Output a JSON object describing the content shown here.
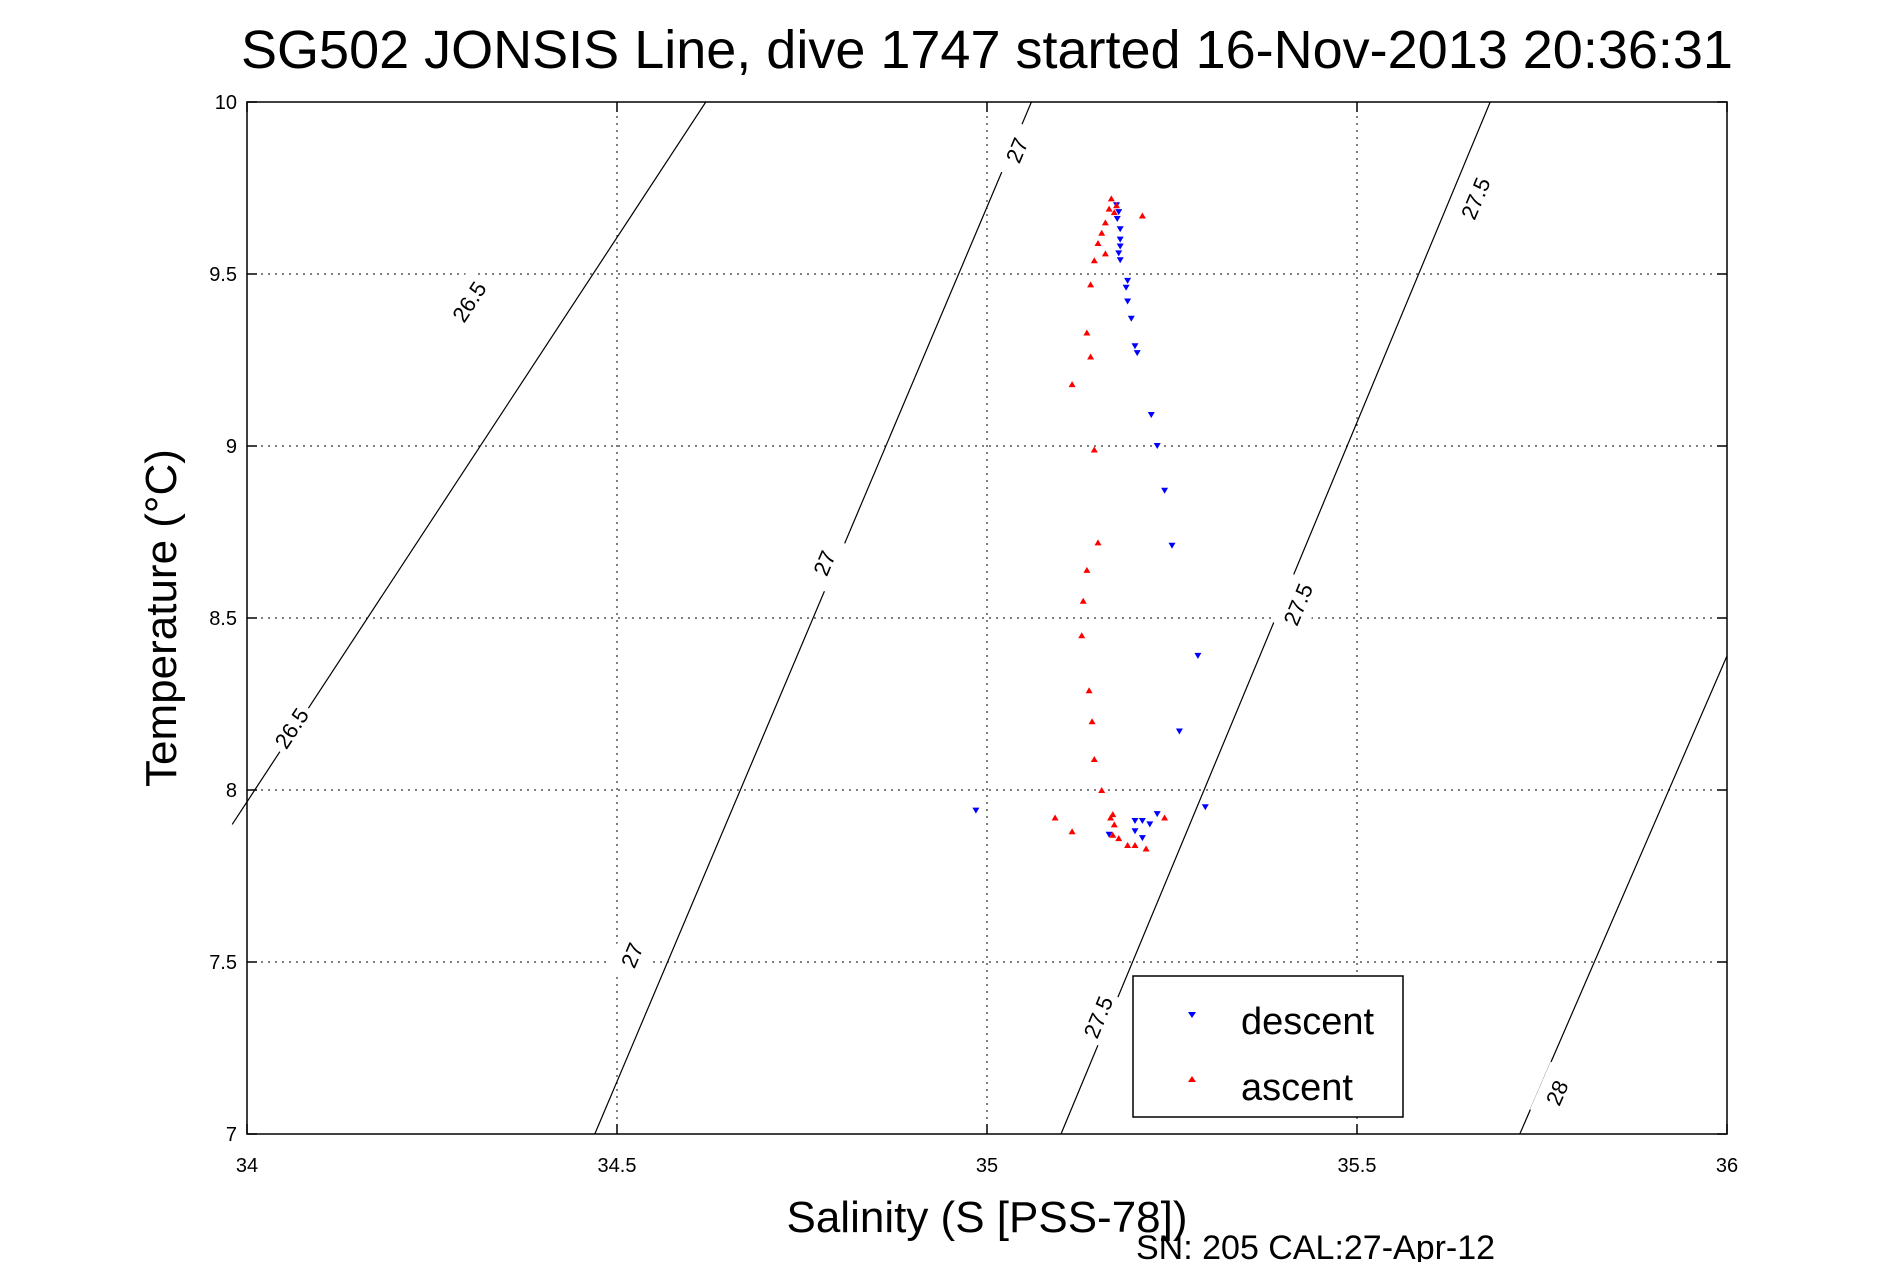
{
  "chart_data": {
    "type": "scatter",
    "title": "SG502 JONSIS Line, dive 1747 started 16-Nov-2013 20:36:31",
    "xlabel": "Salinity (S [PSS-78])",
    "ylabel": "Temperature (°C)",
    "note": "SN: 205  CAL:27-Apr-12",
    "xlim": [
      34,
      36
    ],
    "ylim": [
      7,
      10
    ],
    "xticks": [
      "34",
      "34.5",
      "35",
      "35.5",
      "36"
    ],
    "yticks": [
      "7",
      "7.5",
      "8",
      "8.5",
      "9",
      "9.5",
      "10"
    ],
    "grid": true,
    "legend_position": "bottom-right",
    "density_contours": [
      {
        "label": "26.5",
        "points": [
          [
            33.98,
            7.9
          ],
          [
            34.62,
            10.0
          ]
        ],
        "label_points": [
          [
            34.06,
            8.18
          ],
          [
            34.3,
            9.42
          ]
        ]
      },
      {
        "label": "27",
        "points": [
          [
            34.47,
            7.0
          ],
          [
            35.06,
            10.0
          ]
        ],
        "label_points": [
          [
            34.52,
            7.52
          ],
          [
            34.78,
            8.66
          ],
          [
            35.04,
            9.86
          ]
        ]
      },
      {
        "label": "27.5",
        "points": [
          [
            35.1,
            7.0
          ],
          [
            35.68,
            10.0
          ]
        ],
        "label_points": [
          [
            35.15,
            7.34
          ],
          [
            35.42,
            8.54
          ],
          [
            35.66,
            9.72
          ]
        ]
      },
      {
        "label": "28",
        "points": [
          [
            35.72,
            7.0
          ],
          [
            36.0,
            8.39
          ]
        ],
        "label_points": [
          [
            35.77,
            7.12
          ]
        ]
      }
    ],
    "series": [
      {
        "name": "descent",
        "color": "#0000ff",
        "marker": "triangle-down",
        "points": [
          [
            35.175,
            9.7
          ],
          [
            35.178,
            9.68
          ],
          [
            35.176,
            9.66
          ],
          [
            35.18,
            9.63
          ],
          [
            35.18,
            9.6
          ],
          [
            35.18,
            9.58
          ],
          [
            35.178,
            9.56
          ],
          [
            35.18,
            9.54
          ],
          [
            35.19,
            9.48
          ],
          [
            35.188,
            9.46
          ],
          [
            35.19,
            9.42
          ],
          [
            35.195,
            9.37
          ],
          [
            35.2,
            9.29
          ],
          [
            35.203,
            9.27
          ],
          [
            35.222,
            9.09
          ],
          [
            35.23,
            9.0
          ],
          [
            35.24,
            8.87
          ],
          [
            35.25,
            8.71
          ],
          [
            35.285,
            8.39
          ],
          [
            35.26,
            8.17
          ],
          [
            35.295,
            7.95
          ],
          [
            34.985,
            7.94
          ],
          [
            35.23,
            7.93
          ],
          [
            35.21,
            7.91
          ],
          [
            35.2,
            7.91
          ],
          [
            35.22,
            7.9
          ],
          [
            35.2,
            7.88
          ],
          [
            35.165,
            7.87
          ],
          [
            35.21,
            7.86
          ]
        ]
      },
      {
        "name": "ascent",
        "color": "#ff0000",
        "marker": "triangle-up",
        "points": [
          [
            35.168,
            9.72
          ],
          [
            35.175,
            9.7
          ],
          [
            35.165,
            9.69
          ],
          [
            35.172,
            9.68
          ],
          [
            35.21,
            9.67
          ],
          [
            35.16,
            9.65
          ],
          [
            35.155,
            9.62
          ],
          [
            35.15,
            9.59
          ],
          [
            35.16,
            9.56
          ],
          [
            35.145,
            9.54
          ],
          [
            35.14,
            9.47
          ],
          [
            35.135,
            9.33
          ],
          [
            35.14,
            9.26
          ],
          [
            35.115,
            9.18
          ],
          [
            35.145,
            8.99
          ],
          [
            35.15,
            8.72
          ],
          [
            35.135,
            8.64
          ],
          [
            35.13,
            8.55
          ],
          [
            35.128,
            8.45
          ],
          [
            35.138,
            8.29
          ],
          [
            35.142,
            8.2
          ],
          [
            35.145,
            8.09
          ],
          [
            35.155,
            8.0
          ],
          [
            35.17,
            7.93
          ],
          [
            35.167,
            7.92
          ],
          [
            35.092,
            7.92
          ],
          [
            35.24,
            7.92
          ],
          [
            35.172,
            7.9
          ],
          [
            35.115,
            7.88
          ],
          [
            35.17,
            7.87
          ],
          [
            35.178,
            7.86
          ],
          [
            35.19,
            7.84
          ],
          [
            35.2,
            7.84
          ],
          [
            35.215,
            7.83
          ]
        ]
      }
    ]
  }
}
